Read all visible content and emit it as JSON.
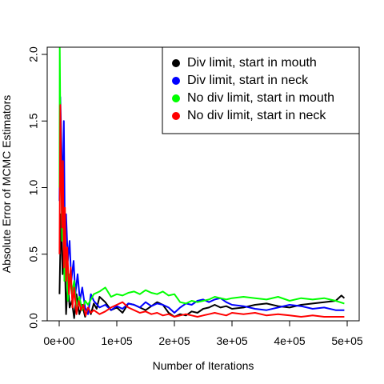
{
  "chart_data": {
    "type": "line",
    "xlabel": "Number of Iterations",
    "ylabel": "Absolute Error of MCMC Estimators",
    "xlim": [
      0,
      500000
    ],
    "ylim": [
      0,
      2.0
    ],
    "x_ticks": [
      0,
      100000,
      200000,
      300000,
      400000,
      500000
    ],
    "x_tick_labels": [
      "0e+00",
      "1e+05",
      "2e+05",
      "3e+05",
      "4e+05",
      "5e+05"
    ],
    "y_ticks": [
      0.0,
      0.5,
      1.0,
      1.5,
      2.0
    ],
    "y_tick_labels": [
      "0.0",
      "0.5",
      "1.0",
      "1.5",
      "2.0"
    ],
    "grid": false,
    "legend_position": "top-right",
    "series": [
      {
        "name": "Div limit, start in mouth",
        "color": "#000000",
        "x": [
          500,
          3000,
          6000,
          9000,
          12000,
          15000,
          18000,
          22000,
          26000,
          30000,
          35000,
          40000,
          45000,
          50000,
          55000,
          60000,
          65000,
          70000,
          80000,
          90000,
          100000,
          110000,
          120000,
          130000,
          140000,
          150000,
          160000,
          170000,
          180000,
          190000,
          200000,
          210000,
          220000,
          230000,
          240000,
          250000,
          260000,
          270000,
          280000,
          290000,
          300000,
          320000,
          340000,
          360000,
          380000,
          400000,
          420000,
          440000,
          460000,
          480000,
          490000,
          495000
        ],
        "y": [
          0.2,
          0.8,
          0.35,
          0.6,
          0.05,
          0.3,
          0.1,
          0.15,
          0.02,
          0.2,
          0.05,
          0.12,
          0.03,
          0.1,
          0.05,
          0.13,
          0.09,
          0.18,
          0.14,
          0.08,
          0.1,
          0.06,
          0.13,
          0.12,
          0.1,
          0.08,
          0.11,
          0.14,
          0.12,
          0.06,
          0.03,
          0.05,
          0.04,
          0.07,
          0.06,
          0.09,
          0.1,
          0.12,
          0.1,
          0.11,
          0.09,
          0.1,
          0.12,
          0.13,
          0.11,
          0.1,
          0.12,
          0.13,
          0.14,
          0.15,
          0.19,
          0.17
        ]
      },
      {
        "name": "Div limit, start in neck",
        "color": "#0000ff",
        "x": [
          500,
          2000,
          4000,
          6000,
          8000,
          10000,
          12000,
          15000,
          18000,
          21000,
          25000,
          28000,
          32000,
          36000,
          40000,
          45000,
          50000,
          55000,
          60000,
          70000,
          80000,
          90000,
          100000,
          110000,
          120000,
          130000,
          140000,
          150000,
          160000,
          170000,
          180000,
          190000,
          200000,
          210000,
          220000,
          230000,
          240000,
          250000,
          260000,
          270000,
          280000,
          290000,
          300000,
          320000,
          340000,
          360000,
          380000,
          400000,
          420000,
          440000,
          460000,
          480000,
          495000
        ],
        "y": [
          0.9,
          1.68,
          1.3,
          0.9,
          1.5,
          0.6,
          0.8,
          0.45,
          0.6,
          0.3,
          0.45,
          0.2,
          0.35,
          0.15,
          0.25,
          0.1,
          0.05,
          0.2,
          0.15,
          0.1,
          0.12,
          0.08,
          0.11,
          0.09,
          0.13,
          0.12,
          0.1,
          0.14,
          0.11,
          0.13,
          0.12,
          0.1,
          0.06,
          0.1,
          0.13,
          0.12,
          0.15,
          0.16,
          0.14,
          0.16,
          0.17,
          0.14,
          0.12,
          0.11,
          0.09,
          0.08,
          0.1,
          0.12,
          0.11,
          0.09,
          0.1,
          0.08,
          0.08
        ]
      },
      {
        "name": "No div limit, start in mouth",
        "color": "#00ff00",
        "x": [
          500,
          1000,
          2000,
          3500,
          5000,
          7000,
          9000,
          12000,
          15000,
          18000,
          22000,
          26000,
          30000,
          35000,
          40000,
          45000,
          50000,
          60000,
          70000,
          80000,
          90000,
          100000,
          110000,
          120000,
          130000,
          140000,
          150000,
          160000,
          170000,
          180000,
          190000,
          200000,
          210000,
          220000,
          230000,
          240000,
          250000,
          260000,
          270000,
          280000,
          290000,
          300000,
          320000,
          340000,
          360000,
          380000,
          400000,
          420000,
          440000,
          460000,
          480000,
          495000
        ],
        "y": [
          1.0,
          2.05,
          1.5,
          1.1,
          0.6,
          0.9,
          0.3,
          0.5,
          0.15,
          0.35,
          0.2,
          0.3,
          0.1,
          0.18,
          0.08,
          0.15,
          0.12,
          0.2,
          0.22,
          0.25,
          0.18,
          0.2,
          0.19,
          0.21,
          0.22,
          0.2,
          0.23,
          0.21,
          0.2,
          0.22,
          0.19,
          0.2,
          0.14,
          0.13,
          0.15,
          0.14,
          0.15,
          0.16,
          0.18,
          0.17,
          0.16,
          0.17,
          0.18,
          0.17,
          0.16,
          0.18,
          0.15,
          0.17,
          0.16,
          0.17,
          0.15,
          0.13
        ]
      },
      {
        "name": "No div limit, start in neck",
        "color": "#ff0000",
        "x": [
          500,
          2000,
          3500,
          5000,
          6500,
          8000,
          10000,
          12000,
          14000,
          17000,
          20000,
          23000,
          26000,
          30000,
          34000,
          38000,
          42000,
          46000,
          50000,
          55000,
          60000,
          70000,
          80000,
          90000,
          100000,
          110000,
          120000,
          130000,
          140000,
          150000,
          160000,
          170000,
          180000,
          190000,
          200000,
          210000,
          220000,
          230000,
          240000,
          250000,
          260000,
          270000,
          280000,
          290000,
          300000,
          320000,
          340000,
          360000,
          380000,
          400000,
          420000,
          440000,
          460000,
          480000,
          495000
        ],
        "y": [
          0.5,
          1.62,
          1.1,
          0.7,
          1.2,
          0.4,
          0.85,
          0.3,
          0.55,
          0.2,
          0.4,
          0.1,
          0.25,
          0.05,
          0.15,
          0.08,
          0.12,
          0.04,
          0.1,
          0.06,
          0.08,
          0.05,
          0.07,
          0.1,
          0.12,
          0.14,
          0.1,
          0.08,
          0.06,
          0.07,
          0.05,
          0.06,
          0.04,
          0.05,
          0.03,
          0.04,
          0.05,
          0.04,
          0.03,
          0.04,
          0.05,
          0.06,
          0.05,
          0.04,
          0.06,
          0.05,
          0.06,
          0.04,
          0.05,
          0.04,
          0.03,
          0.04,
          0.03,
          0.03,
          0.03
        ]
      }
    ]
  }
}
